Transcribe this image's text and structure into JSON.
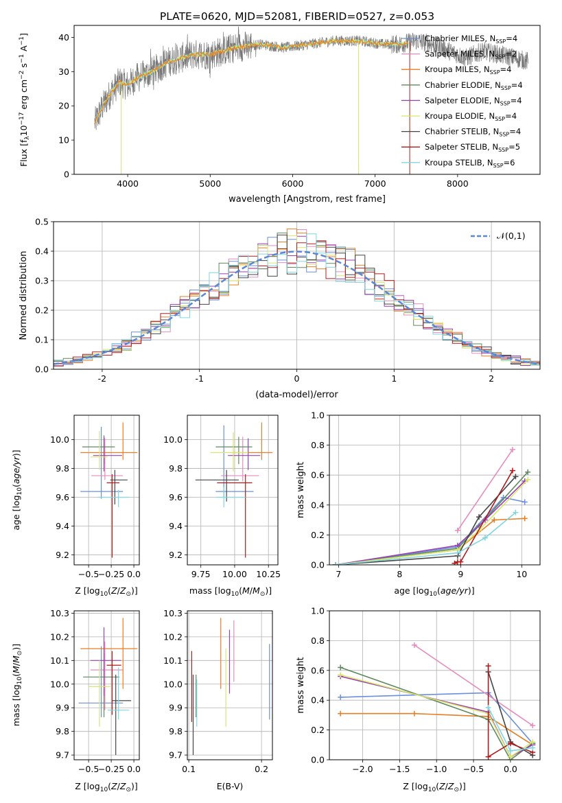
{
  "title": "PLATE=0620, MJD=52081, FIBERID=0527, z=0.053",
  "models": [
    {
      "name": "Chabrier MILES",
      "nssp": "4",
      "color": "#6a8fdc"
    },
    {
      "name": "Salpeter MILES",
      "nssp": "2",
      "color": "#e68bbd"
    },
    {
      "name": "Kroupa MILES",
      "nssp": "4",
      "color": "#e87d22"
    },
    {
      "name": "Chabrier ELODIE",
      "nssp": "4",
      "color": "#5e8a5e"
    },
    {
      "name": "Salpeter ELODIE",
      "nssp": "4",
      "color": "#9b3fb5"
    },
    {
      "name": "Kroupa ELODIE",
      "nssp": "4",
      "color": "#d8e66b"
    },
    {
      "name": "Chabrier STELIB",
      "nssp": "4",
      "color": "#444444"
    },
    {
      "name": "Salpeter STELIB",
      "nssp": "5",
      "color": "#b01a1a"
    },
    {
      "name": "Kroupa STELIB",
      "nssp": "6",
      "color": "#7fd6e0"
    }
  ],
  "chart_data": [
    {
      "id": "spectrum",
      "type": "line",
      "xlabel": "wavelength [Angstrom, rest frame]",
      "ylabel": "Flux [f_λ10^-17 erg cm^-2 s^-1 A^-1]",
      "xlim": [
        3350,
        9000
      ],
      "ylim": [
        0,
        43.5
      ],
      "xticks": [
        4000,
        5000,
        6000,
        7000,
        8000
      ],
      "yticks": [
        0,
        10,
        20,
        30,
        40
      ],
      "grid": false,
      "legend": "right",
      "data_profile": {
        "x": [
          3600,
          3700,
          3800,
          3900,
          4000,
          4100,
          4300,
          4500,
          4800,
          5000,
          5300,
          5600,
          5900,
          6200,
          6500,
          6800,
          7100,
          7300,
          7500,
          7700,
          7900,
          8100,
          8300,
          8500,
          8700,
          8850
        ],
        "y": [
          15,
          20,
          24,
          27,
          26,
          28,
          30,
          33,
          35,
          35,
          37,
          38,
          37,
          38,
          39,
          39,
          38,
          38,
          39,
          38,
          36,
          34,
          36,
          35,
          34,
          33
        ]
      }
    },
    {
      "id": "residuals",
      "type": "line",
      "xlabel": "(data-model)/error",
      "ylabel": "Normed distribution",
      "xlim": [
        -2.5,
        2.5
      ],
      "ylim": [
        0,
        0.5
      ],
      "xticks": [
        -2,
        -1,
        0,
        1,
        2
      ],
      "yticks": [
        0.0,
        0.1,
        0.2,
        0.3,
        0.4,
        0.5
      ],
      "grid": true,
      "legend": "top-right",
      "reference_label": "𝒩(0,1)",
      "reference_color": "#5b86d4"
    },
    {
      "id": "age-vs-Z",
      "type": "scatter",
      "xlabel": "Z [log10(Z/Z☉)]",
      "ylabel": "age [log10(age/yr)]",
      "xlim": [
        -0.66,
        0.06
      ],
      "ylim": [
        9.13,
        10.17
      ],
      "xticks": [
        -0.5,
        -0.25,
        0.0
      ],
      "yticks": [
        9.2,
        9.4,
        9.6,
        9.8,
        10.0
      ],
      "grid": true,
      "points": [
        {
          "x": -0.36,
          "y": 9.64,
          "xe": [
            -0.59,
            -0.12
          ],
          "ye": [
            9.59,
            10.09
          ]
        },
        {
          "x": -0.32,
          "y": 9.75,
          "xe": [
            -0.47,
            -0.12
          ],
          "ye": [
            9.72,
            10.01
          ]
        },
        {
          "x": -0.12,
          "y": 9.91,
          "xe": [
            -0.59,
            0.04
          ],
          "ye": [
            9.86,
            10.12
          ]
        },
        {
          "x": -0.33,
          "y": 9.95,
          "xe": [
            -0.57,
            -0.21
          ],
          "ye": [
            9.83,
            10.03
          ]
        },
        {
          "x": -0.33,
          "y": 9.89,
          "xe": [
            -0.45,
            -0.13
          ],
          "ye": [
            9.78,
            10.02
          ]
        },
        {
          "x": -0.38,
          "y": 9.88,
          "xe": [
            -0.48,
            -0.29
          ],
          "ye": [
            9.79,
            10.06
          ]
        },
        {
          "x": -0.21,
          "y": 9.72,
          "xe": [
            -0.26,
            -0.07
          ],
          "ye": [
            9.55,
            9.79
          ]
        },
        {
          "x": -0.24,
          "y": 9.7,
          "xe": [
            -0.3,
            -0.16
          ],
          "ye": [
            9.18,
            9.76
          ]
        },
        {
          "x": -0.17,
          "y": 9.6,
          "xe": [
            -0.4,
            -0.05
          ],
          "ye": [
            9.53,
            9.65
          ]
        }
      ]
    },
    {
      "id": "age-vs-mass",
      "type": "scatter",
      "xlabel": "mass [log10(M/M☉)]",
      "ylabel": "",
      "xlim": [
        9.65,
        10.32
      ],
      "ylim": [
        9.13,
        10.17
      ],
      "xticks": [
        9.75,
        10.0,
        10.25
      ],
      "yticks": [
        9.2,
        9.4,
        9.6,
        9.8,
        10.0
      ],
      "grid": true,
      "points": [
        {
          "x": 9.92,
          "y": 9.64,
          "xe": [
            9.86,
            10.14
          ],
          "ye": [
            9.6,
            10.1
          ]
        },
        {
          "x": 10.06,
          "y": 9.75,
          "xe": [
            9.9,
            10.18
          ],
          "ye": [
            9.71,
            10.02
          ]
        },
        {
          "x": 10.2,
          "y": 9.91,
          "xe": [
            9.98,
            10.28
          ],
          "ye": [
            9.86,
            10.12
          ]
        },
        {
          "x": 10.03,
          "y": 9.95,
          "xe": [
            9.86,
            10.13
          ],
          "ye": [
            9.83,
            10.02
          ]
        },
        {
          "x": 10.1,
          "y": 9.89,
          "xe": [
            9.95,
            10.19
          ],
          "ye": [
            9.79,
            10.01
          ]
        },
        {
          "x": 9.99,
          "y": 9.91,
          "xe": [
            9.82,
            10.1
          ],
          "ye": [
            9.78,
            10.05
          ]
        },
        {
          "x": 9.94,
          "y": 9.72,
          "xe": [
            9.71,
            10.03
          ],
          "ye": [
            9.57,
            9.79
          ]
        },
        {
          "x": 10.08,
          "y": 9.7,
          "xe": [
            9.87,
            10.13
          ],
          "ye": [
            9.18,
            9.76
          ]
        },
        {
          "x": 9.92,
          "y": 9.6,
          "xe": [
            9.86,
            10.08
          ],
          "ye": [
            9.53,
            9.67
          ]
        }
      ]
    },
    {
      "id": "massweight-vs-age",
      "type": "line",
      "xlabel": "age [log10(age/yr)]",
      "ylabel": "mass weight",
      "xlim": [
        6.85,
        10.3
      ],
      "ylim": [
        0,
        1.0
      ],
      "xticks": [
        7,
        8,
        9,
        10
      ],
      "yticks": [
        0.0,
        0.2,
        0.4,
        0.6,
        0.8,
        1.0
      ],
      "grid": true,
      "series": [
        {
          "x": [
            6.95,
            8.95,
            9.7,
            10.05
          ],
          "y": [
            0.0,
            0.12,
            0.45,
            0.42
          ]
        },
        {
          "x": 8.95,
          "y": 0.23,
          "x2": 9.85,
          "y2": 0.77
        },
        {
          "x": [
            6.95,
            8.95,
            9.55,
            10.05
          ],
          "y": [
            0.0,
            0.1,
            0.3,
            0.31
          ]
        },
        {
          "x": [
            6.95,
            8.95,
            9.3,
            10.1
          ],
          "y": [
            0.0,
            0.11,
            0.26,
            0.62
          ]
        },
        {
          "x": [
            6.95,
            8.95,
            9.4,
            10.05
          ],
          "y": [
            0.0,
            0.13,
            0.3,
            0.56
          ]
        },
        {
          "x": [
            6.95,
            8.95,
            9.3,
            10.1
          ],
          "y": [
            0.0,
            0.1,
            0.23,
            0.57
          ]
        },
        {
          "x": [
            6.95,
            8.95,
            9.3,
            9.9
          ],
          "y": [
            0.0,
            0.06,
            0.32,
            0.59
          ]
        },
        {
          "x": [
            8.9,
            8.95,
            9.0,
            9.85
          ],
          "y": [
            0.01,
            0.02,
            0.02,
            0.63
          ]
        },
        {
          "x": [
            6.95,
            8.95,
            9.4,
            9.9
          ],
          "y": [
            0.0,
            0.08,
            0.18,
            0.35
          ]
        }
      ]
    },
    {
      "id": "mass-vs-Z",
      "type": "scatter",
      "xlabel": "Z [log10(Z/Z☉)]",
      "ylabel": "mass [log10(M/M☉)]",
      "xlim": [
        -0.66,
        0.06
      ],
      "ylim": [
        9.68,
        10.31
      ],
      "xticks": [
        -0.5,
        -0.25,
        0.0
      ],
      "yticks": [
        9.7,
        9.8,
        9.9,
        10.0,
        10.1,
        10.2,
        10.3
      ],
      "grid": true,
      "points": [
        {
          "x": -0.36,
          "y": 9.92,
          "xe": [
            -0.61,
            -0.12
          ],
          "ye": [
            9.86,
            10.16
          ]
        },
        {
          "x": -0.32,
          "y": 10.06,
          "xe": [
            -0.48,
            -0.12
          ],
          "ye": [
            9.89,
            10.18
          ]
        },
        {
          "x": -0.12,
          "y": 10.15,
          "xe": [
            -0.59,
            0.04
          ],
          "ye": [
            9.98,
            10.28
          ]
        },
        {
          "x": -0.33,
          "y": 10.03,
          "xe": [
            -0.56,
            -0.16
          ],
          "ye": [
            9.86,
            10.13
          ]
        },
        {
          "x": -0.33,
          "y": 10.1,
          "xe": [
            -0.48,
            -0.14
          ],
          "ye": [
            9.95,
            10.24
          ]
        },
        {
          "x": -0.38,
          "y": 9.99,
          "xe": [
            -0.5,
            -0.26
          ],
          "ye": [
            9.82,
            10.1
          ]
        },
        {
          "x": -0.2,
          "y": 9.93,
          "xe": [
            -0.24,
            -0.03
          ],
          "ye": [
            9.7,
            10.04
          ]
        },
        {
          "x": -0.24,
          "y": 10.08,
          "xe": [
            -0.3,
            -0.14
          ],
          "ye": [
            9.87,
            10.14
          ]
        },
        {
          "x": -0.17,
          "y": 9.89,
          "xe": [
            -0.29,
            -0.05
          ],
          "ye": [
            9.85,
            10.07
          ]
        }
      ]
    },
    {
      "id": "mass-vs-EBV",
      "type": "scatter",
      "xlabel": "E(B-V)",
      "ylabel": "",
      "xlim": [
        0.098,
        0.215
      ],
      "ylim": [
        9.68,
        10.31
      ],
      "xticks": [
        0.1,
        0.2
      ],
      "yticks": [
        9.7,
        9.8,
        9.9,
        10.0,
        10.1,
        10.2,
        10.3
      ],
      "grid": true,
      "segments": [
        {
          "x": 0.211,
          "y": [
            9.85,
            10.17
          ]
        },
        {
          "x": 0.162,
          "y": [
            10.01,
            10.27
          ]
        },
        {
          "x": 0.144,
          "y": [
            9.98,
            10.28
          ]
        },
        {
          "x": 0.11,
          "y": [
            9.86,
            10.04
          ]
        },
        {
          "x": 0.156,
          "y": [
            9.96,
            10.23
          ]
        },
        {
          "x": 0.151,
          "y": [
            9.82,
            10.15
          ]
        },
        {
          "x": 0.106,
          "y": [
            9.7,
            10.04
          ]
        },
        {
          "x": 0.104,
          "y": [
            9.84,
            10.14
          ]
        },
        {
          "x": 0.111,
          "y": [
            9.82,
            10.02
          ]
        }
      ]
    },
    {
      "id": "massweight-vs-Z",
      "type": "line",
      "xlabel": "Z [log10(Z/Z☉)]",
      "ylabel": "mass weight",
      "xlim": [
        -2.45,
        0.4
      ],
      "ylim": [
        0,
        1.0
      ],
      "xticks": [
        -2.0,
        -1.5,
        -1.0,
        -0.5,
        0.0
      ],
      "yticks": [
        0.0,
        0.2,
        0.4,
        0.6,
        0.8,
        1.0
      ],
      "grid": true,
      "series": [
        {
          "x": [
            -2.3,
            -0.3,
            0.3
          ],
          "y": [
            0.42,
            0.45,
            0.11
          ]
        },
        {
          "x": [
            -1.3,
            0.3
          ],
          "y": [
            0.77,
            0.23
          ]
        },
        {
          "x": [
            -2.3,
            -1.3,
            -0.3,
            0.3
          ],
          "y": [
            0.31,
            0.31,
            0.29,
            0.1
          ]
        },
        {
          "x": [
            -2.3,
            -0.3,
            0.0,
            0.3
          ],
          "y": [
            0.62,
            0.27,
            0.0,
            0.11
          ]
        },
        {
          "x": [
            -2.3,
            -0.3,
            0.0,
            0.3
          ],
          "y": [
            0.56,
            0.32,
            0.02,
            0.1
          ]
        },
        {
          "x": [
            -2.3,
            -0.3,
            0.0,
            0.3
          ],
          "y": [
            0.57,
            0.31,
            0.02,
            0.12
          ]
        },
        {
          "x": [
            -0.3,
            0.0,
            0.3
          ],
          "y": [
            0.59,
            0.12,
            0.03
          ]
        },
        {
          "x": [
            -0.3,
            -0.3,
            0.0,
            0.3
          ],
          "y": [
            0.63,
            0.02,
            0.11,
            0.05
          ]
        },
        {
          "x": [
            -0.3,
            0.0,
            0.3
          ],
          "y": [
            0.35,
            0.06,
            0.08
          ]
        }
      ]
    }
  ]
}
